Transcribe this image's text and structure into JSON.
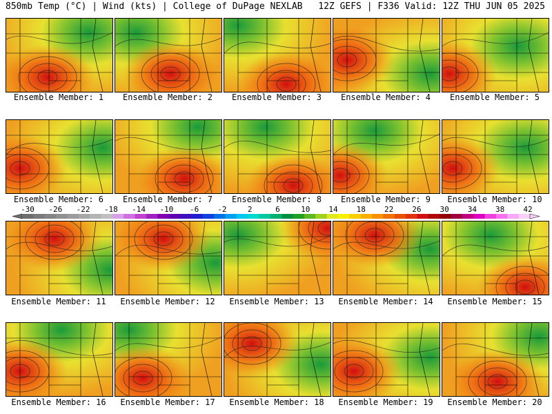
{
  "header": {
    "left": "850mb Temp (°C) | Wind (kts) | College of DuPage NEXLAB",
    "right": "12Z GEFS | F336 Valid: 12Z THU JUN 05 2025"
  },
  "members": [
    {
      "label": "Ensemble Member: 1",
      "hot": [
        60,
        85
      ],
      "cool": [
        120,
        20
      ]
    },
    {
      "label": "Ensemble Member: 2",
      "hot": [
        80,
        80
      ],
      "cool": [
        30,
        20
      ]
    },
    {
      "label": "Ensemble Member: 3",
      "hot": [
        90,
        95
      ],
      "cool": [
        20,
        10
      ]
    },
    {
      "label": "Ensemble Member: 4",
      "hot": [
        20,
        60
      ],
      "cool": [
        140,
        80
      ]
    },
    {
      "label": "Ensemble Member: 5",
      "hot": [
        10,
        80
      ],
      "cool": [
        110,
        40
      ]
    },
    {
      "label": "Ensemble Member: 6",
      "hot": [
        20,
        70
      ],
      "cool": [
        140,
        40
      ]
    },
    {
      "label": "Ensemble Member: 7",
      "hot": [
        100,
        85
      ],
      "cool": [
        120,
        10
      ]
    },
    {
      "label": "Ensemble Member: 8",
      "hot": [
        100,
        95
      ],
      "cool": [
        60,
        10
      ]
    },
    {
      "label": "Ensemble Member: 9",
      "hot": [
        10,
        80
      ],
      "cool": [
        60,
        15
      ]
    },
    {
      "label": "Ensemble Member: 10",
      "hot": [
        15,
        70
      ],
      "cool": [
        120,
        40
      ]
    },
    {
      "label": "Ensemble Member: 11",
      "hot": [
        70,
        25
      ],
      "cool": [
        150,
        70
      ]
    },
    {
      "label": "Ensemble Member: 12",
      "hot": [
        70,
        25
      ],
      "cool": [
        145,
        60
      ]
    },
    {
      "label": "Ensemble Member: 13",
      "hot": [
        150,
        10
      ],
      "cool": [
        20,
        20
      ]
    },
    {
      "label": "Ensemble Member: 14",
      "hot": [
        60,
        20
      ],
      "cool": [
        140,
        40
      ]
    },
    {
      "label": "Ensemble Member: 15",
      "hot": [
        120,
        95
      ],
      "cool": [
        70,
        20
      ]
    },
    {
      "label": "Ensemble Member: 16",
      "hot": [
        20,
        70
      ],
      "cool": [
        80,
        10
      ]
    },
    {
      "label": "Ensemble Member: 17",
      "hot": [
        40,
        80
      ],
      "cool": [
        20,
        10
      ]
    },
    {
      "label": "Ensemble Member: 18",
      "hot": [
        40,
        30
      ],
      "cool": [
        140,
        60
      ]
    },
    {
      "label": "Ensemble Member: 19",
      "hot": [
        30,
        70
      ],
      "cool": [
        140,
        50
      ]
    },
    {
      "label": "Ensemble Member: 20",
      "hot": [
        80,
        85
      ],
      "cool": [
        140,
        20
      ]
    }
  ],
  "colorbar": {
    "ticks": [
      "-30",
      "-26",
      "-22",
      "-18",
      "-14",
      "-10",
      "-6",
      "-2",
      "2",
      "6",
      "10",
      "14",
      "18",
      "22",
      "26",
      "30",
      "34",
      "38",
      "42"
    ],
    "colors": [
      "#6e6e6e",
      "#7a7a7a",
      "#858585",
      "#919191",
      "#9c9c9c",
      "#a8a8a8",
      "#b4b4b4",
      "#c0c0c0",
      "#d8a0e8",
      "#d070e0",
      "#c040d0",
      "#a020c0",
      "#8000b0",
      "#6000b0",
      "#4010c0",
      "#2020d0",
      "#1040e0",
      "#0070e8",
      "#00a0f0",
      "#00c8f0",
      "#00d8d0",
      "#00c8a0",
      "#00b070",
      "#009040",
      "#20a020",
      "#60b820",
      "#a0d020",
      "#e0e820",
      "#f8f000",
      "#f8d000",
      "#f8b000",
      "#f89000",
      "#f07000",
      "#e85000",
      "#e03010",
      "#d01010",
      "#b00808",
      "#900000",
      "#a00040",
      "#c00080",
      "#e000c0",
      "#f040e0",
      "#f870f0",
      "#f8a8f8",
      "#f8d0f8"
    ]
  }
}
